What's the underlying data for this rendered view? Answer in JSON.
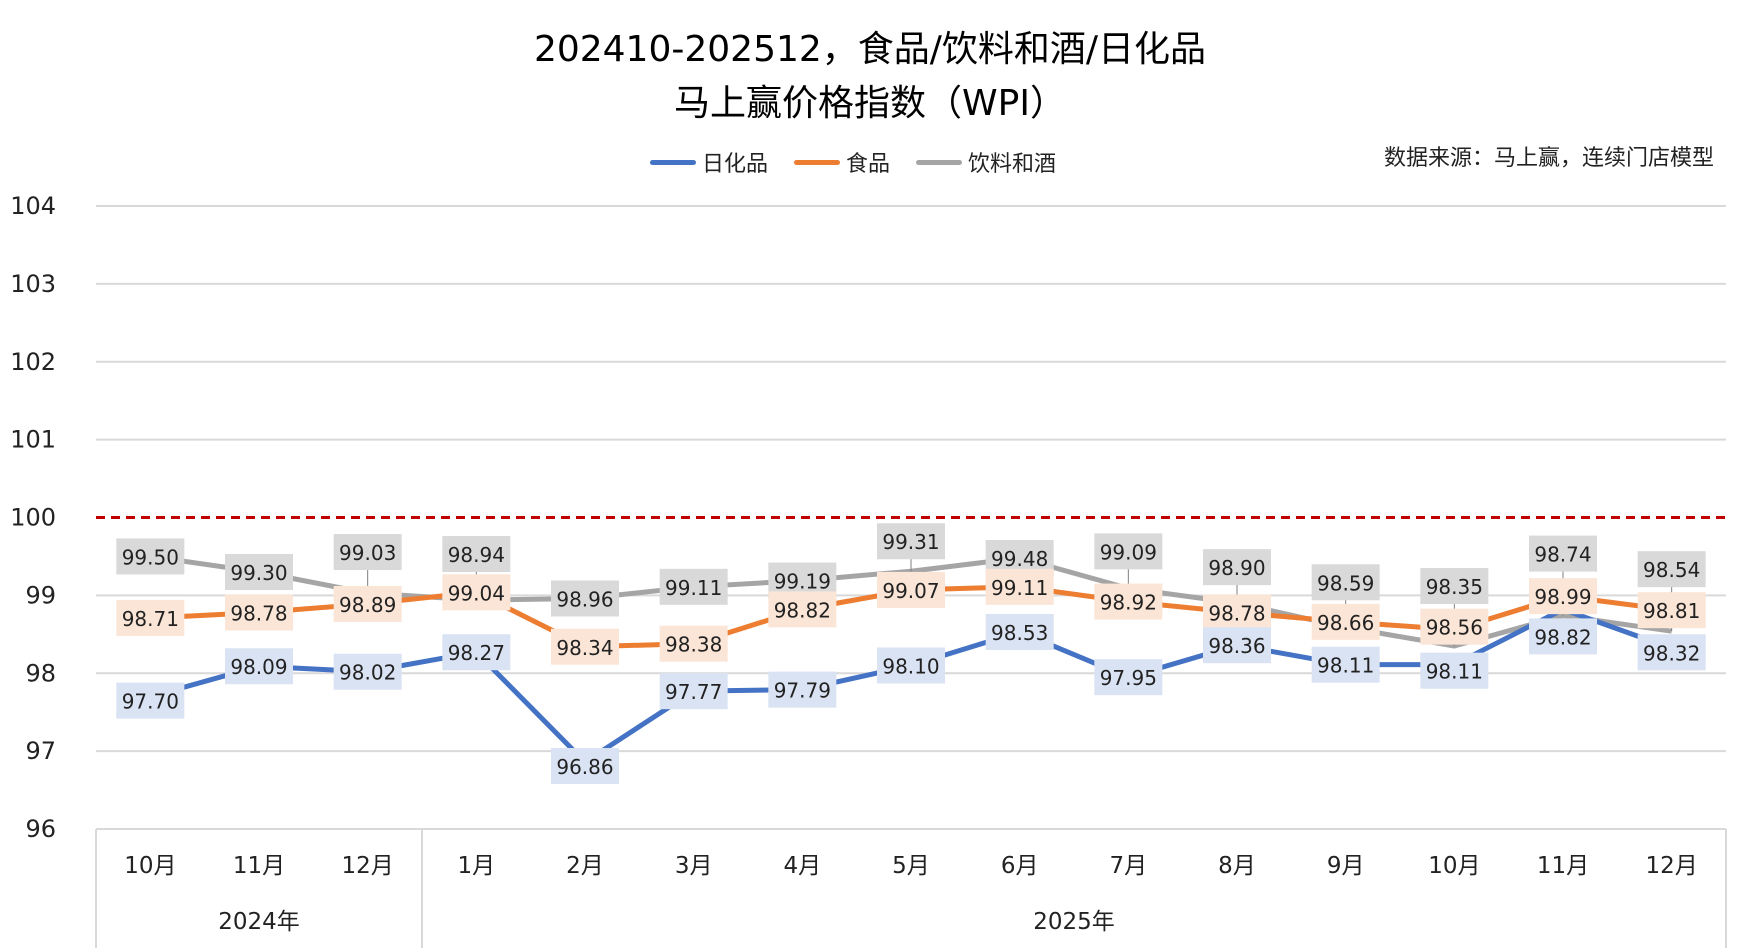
{
  "chart_data": {
    "type": "line",
    "title_line1": "202410-202512，食品/饮料和酒/日化品",
    "title_line2": "马上赢价格指数（WPI）",
    "source": "数据来源：马上赢，连续门店模型",
    "categories": [
      "10月",
      "11月",
      "12月",
      "1月",
      "2月",
      "3月",
      "4月",
      "5月",
      "6月",
      "7月",
      "8月",
      "9月",
      "10月",
      "11月",
      "12月"
    ],
    "year_groups": [
      {
        "label": "2024年",
        "count": 3
      },
      {
        "label": "2025年",
        "count": 12
      }
    ],
    "ylim": [
      96,
      104
    ],
    "yticks": [
      "96",
      "97",
      "98",
      "99",
      "100",
      "101",
      "102",
      "103",
      "104"
    ],
    "reference_line": 100,
    "reference_color": "#c00000",
    "grid": true,
    "legend_position": "top",
    "series": [
      {
        "name": "日化品",
        "color": "#4472c4",
        "label_bg": "#dae3f3",
        "values": [
          97.7,
          98.09,
          98.02,
          98.27,
          96.86,
          97.77,
          97.79,
          98.1,
          98.53,
          97.95,
          98.36,
          98.11,
          98.11,
          98.82,
          98.32
        ],
        "labels": [
          "97.70",
          "98.09",
          "98.02",
          "98.27",
          "96.86",
          "97.77",
          "97.79",
          "98.10",
          "98.53",
          "97.95",
          "98.36",
          "98.11",
          "98.11",
          "98.82",
          "98.32"
        ]
      },
      {
        "name": "食品",
        "color": "#ed7d31",
        "label_bg": "#fbe5d6",
        "values": [
          98.71,
          98.78,
          98.89,
          99.04,
          98.34,
          98.38,
          98.82,
          99.07,
          99.11,
          98.92,
          98.78,
          98.66,
          98.56,
          98.99,
          98.81
        ],
        "labels": [
          "98.71",
          "98.78",
          "98.89",
          "99.04",
          "98.34",
          "98.38",
          "98.82",
          "99.07",
          "99.11",
          "98.92",
          "98.78",
          "98.66",
          "98.56",
          "98.99",
          "98.81"
        ]
      },
      {
        "name": "饮料和酒",
        "color": "#a5a5a5",
        "label_bg": "#d9d9d9",
        "values": [
          99.5,
          99.3,
          99.03,
          98.94,
          98.96,
          99.11,
          99.19,
          99.31,
          99.48,
          99.09,
          98.9,
          98.59,
          98.35,
          98.74,
          98.54
        ],
        "labels": [
          "99.50",
          "99.30",
          "99.03",
          "98.94",
          "98.96",
          "99.11",
          "99.19",
          "99.31",
          "99.48",
          "99.09",
          "98.90",
          "98.59",
          "98.35",
          "98.74",
          "98.54"
        ]
      }
    ]
  }
}
